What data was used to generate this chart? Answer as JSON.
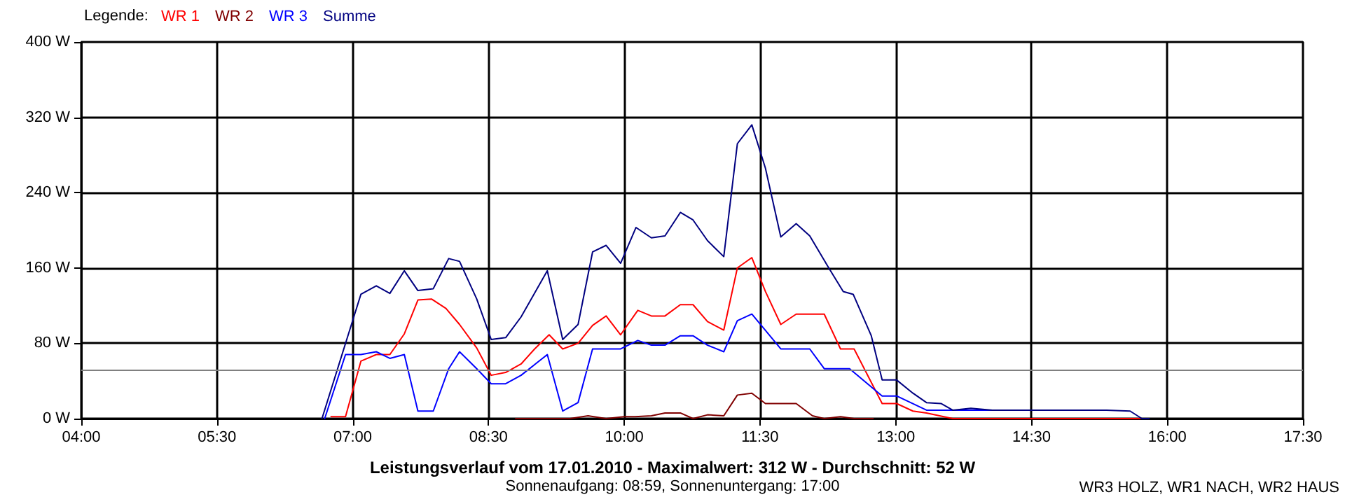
{
  "chart_data": {
    "type": "line",
    "title": "Leistungsverlauf vom 17.01.2010 - Maximalwert: 312 W - Durchschnitt: 52 W",
    "subtitle": "Sonnenaufgang: 08:59, Sonnenuntergang: 17:00",
    "legend_title": "Legende:",
    "annotations": [
      "WR3 HOLZ, WR1 NACH, WR2 HAUS"
    ],
    "xlim": [
      4,
      17.5
    ],
    "xticks": [
      {
        "value": 4,
        "label": "04:00"
      },
      {
        "value": 5.5,
        "label": "05:30"
      },
      {
        "value": 7,
        "label": "07:00"
      },
      {
        "value": 8.5,
        "label": "08:30"
      },
      {
        "value": 10,
        "label": "10:00"
      },
      {
        "value": 11.5,
        "label": "11:30"
      },
      {
        "value": 13,
        "label": "13:00"
      },
      {
        "value": 14.5,
        "label": "14:30"
      },
      {
        "value": 16,
        "label": "16:00"
      },
      {
        "value": 17.5,
        "label": "17:30"
      }
    ],
    "ylim": [
      0,
      400
    ],
    "yticks": [
      {
        "value": 0,
        "label": "0 W"
      },
      {
        "value": 80,
        "label": "80 W"
      },
      {
        "value": 160,
        "label": "160 W"
      },
      {
        "value": 240,
        "label": "240 W"
      },
      {
        "value": 320,
        "label": "320 W"
      },
      {
        "value": 400,
        "label": "400 W"
      }
    ],
    "grid": true,
    "legend": "top left",
    "marker": "none",
    "line_style": "solid",
    "ref_lines": [
      {
        "axis": "y",
        "value": 52,
        "color": "#808080"
      }
    ],
    "series": [
      {
        "name": "WR 1",
        "color": "#ff0000",
        "x": [
          6.76,
          6.92,
          7.09,
          7.26,
          7.41,
          7.57,
          7.72,
          7.87,
          8.03,
          8.18,
          8.37,
          8.53,
          8.69,
          8.86,
          9.01,
          9.17,
          9.32,
          9.49,
          9.65,
          9.8,
          9.96,
          10.15,
          10.3,
          10.45,
          10.62,
          10.76,
          10.92,
          11.1,
          11.25,
          11.41,
          11.56,
          11.73,
          11.9,
          12.21,
          12.39,
          12.54,
          12.85,
          13.01,
          13.19,
          13.34,
          13.63,
          15.7
        ],
        "values": [
          2,
          2,
          61,
          68,
          68,
          90,
          126,
          127,
          117,
          100,
          75,
          46,
          49,
          58,
          74,
          89,
          74,
          80,
          99,
          109,
          89,
          115,
          109,
          109,
          121,
          121,
          103,
          94,
          160,
          171,
          135,
          100,
          111,
          111,
          74,
          74,
          16,
          16,
          8,
          6,
          0,
          0
        ]
      },
      {
        "name": "WR 2",
        "color": "#800000",
        "x": [
          8.8,
          9.4,
          9.6,
          9.8,
          10.0,
          10.12,
          10.3,
          10.45,
          10.62,
          10.76,
          10.92,
          11.1,
          11.25,
          11.41,
          11.56,
          11.9,
          12.08,
          12.21,
          12.39,
          12.54,
          12.75
        ],
        "values": [
          0,
          0,
          3,
          0,
          2,
          2,
          3,
          6,
          6,
          0,
          4,
          3,
          25,
          27,
          16,
          16,
          3,
          0,
          2,
          0,
          0
        ]
      },
      {
        "name": "WR 3",
        "color": "#0000ff",
        "x": [
          6.69,
          6.92,
          7.09,
          7.26,
          7.41,
          7.57,
          7.72,
          7.89,
          8.06,
          8.18,
          8.37,
          8.53,
          8.69,
          8.86,
          9.15,
          9.32,
          9.49,
          9.65,
          9.96,
          10.15,
          10.3,
          10.45,
          10.62,
          10.76,
          10.92,
          11.1,
          11.25,
          11.41,
          11.73,
          12.05,
          12.21,
          12.49,
          12.85,
          13.01,
          13.34,
          15.33
        ],
        "values": [
          0,
          68,
          68,
          71,
          64,
          68,
          8,
          8,
          53,
          71,
          53,
          37,
          37,
          46,
          68,
          8,
          17,
          74,
          74,
          83,
          78,
          78,
          88,
          88,
          78,
          71,
          104,
          111,
          74,
          74,
          53,
          53,
          24,
          24,
          9,
          9
        ]
      },
      {
        "name": "Summe",
        "color": "#000080",
        "x": [
          6.66,
          7.09,
          7.26,
          7.41,
          7.57,
          7.72,
          7.89,
          8.06,
          8.18,
          8.37,
          8.53,
          8.69,
          8.86,
          9.15,
          9.32,
          9.49,
          9.65,
          9.8,
          9.96,
          10.13,
          10.3,
          10.45,
          10.62,
          10.76,
          10.92,
          11.1,
          11.25,
          11.41,
          11.56,
          11.73,
          11.9,
          12.05,
          12.26,
          12.42,
          12.53,
          12.73,
          12.85,
          13.01,
          13.19,
          13.34,
          13.5,
          13.63,
          13.83,
          14.07,
          15.33,
          15.59,
          15.72,
          15.8
        ],
        "values": [
          0,
          132,
          141,
          133,
          157,
          136,
          138,
          170,
          167,
          127,
          84,
          86,
          108,
          157,
          84,
          100,
          177,
          184,
          165,
          203,
          192,
          194,
          219,
          211,
          189,
          172,
          292,
          312,
          266,
          193,
          207,
          194,
          160,
          135,
          132,
          88,
          41,
          41,
          27,
          17,
          16,
          9,
          11,
          9,
          9,
          8,
          0,
          0
        ]
      }
    ]
  }
}
